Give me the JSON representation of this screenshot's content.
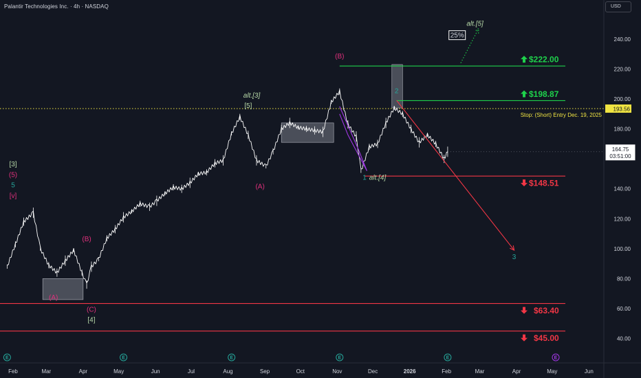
{
  "header": {
    "symbol_title": "Palantir Technologies Inc. · 4h · NASDAQ",
    "currency": "USD"
  },
  "colors": {
    "background": "#131722",
    "text": "#d1d4dc",
    "green_level": "#1ed14b",
    "red_level": "#f23645",
    "magenta": "#e0307c",
    "teal": "#26a69a",
    "light_green": "#b7d9a8",
    "price_line": "#f0e442",
    "violet": "#a238e6",
    "candle": "#ffffff"
  },
  "chart_data": {
    "type": "line",
    "title": "Palantir Technologies Inc. · 4h · NASDAQ",
    "xlabel": "",
    "ylabel": "",
    "ylim": [
      32,
      256
    ],
    "grid": false,
    "x_tick_labels": [
      "Feb",
      "Mar",
      "Apr",
      "May",
      "Jun",
      "Jul",
      "Aug",
      "Sep",
      "Oct",
      "Nov",
      "Dec",
      "2026",
      "Feb",
      "Mar",
      "Apr",
      "May",
      "Jun"
    ],
    "y_tick_labels": [
      "240.00",
      "220.00",
      "200.00",
      "180.00",
      "160.00",
      "140.00",
      "120.00",
      "100.00",
      "80.00",
      "60.00",
      "40.00"
    ],
    "y_tick_values": [
      240,
      220,
      200,
      180,
      160,
      140,
      120,
      100,
      80,
      60,
      40
    ],
    "series": [
      {
        "x": [
          "2025-01-27",
          "2025-02-03",
          "2025-02-10",
          "2025-02-18",
          "2025-02-24",
          "2025-03-03",
          "2025-03-10",
          "2025-03-17",
          "2025-03-24",
          "2025-03-31",
          "2025-04-04",
          "2025-04-08",
          "2025-04-14",
          "2025-04-21",
          "2025-04-28",
          "2025-05-05",
          "2025-05-12",
          "2025-05-19",
          "2025-05-27",
          "2025-06-02",
          "2025-06-09",
          "2025-06-16",
          "2025-06-23",
          "2025-06-30",
          "2025-07-07",
          "2025-07-14",
          "2025-07-21",
          "2025-07-28",
          "2025-08-04",
          "2025-08-11",
          "2025-08-18",
          "2025-08-25",
          "2025-09-02",
          "2025-09-08",
          "2025-09-15",
          "2025-09-22",
          "2025-09-29",
          "2025-10-06",
          "2025-10-13",
          "2025-10-20",
          "2025-10-27",
          "2025-11-03",
          "2025-11-10",
          "2025-11-17",
          "2025-11-21",
          "2025-11-28",
          "2025-12-05",
          "2025-12-12",
          "2025-12-19",
          "2025-12-26",
          "2026-01-02",
          "2026-01-09",
          "2026-01-16",
          "2026-01-23",
          "2026-01-30",
          "2026-02-02"
        ],
        "y": [
          88,
          103,
          118,
          124,
          100,
          89,
          84,
          92,
          99,
          84,
          76,
          88,
          93,
          107,
          113,
          121,
          125,
          130,
          128,
          132,
          137,
          141,
          140,
          144,
          150,
          151,
          157,
          159,
          177,
          188,
          176,
          159,
          155,
          165,
          180,
          184,
          181,
          180,
          179,
          178,
          198,
          205,
          183,
          175,
          152,
          168,
          170,
          184,
          194,
          190,
          180,
          171,
          176,
          170,
          160,
          164.75
        ]
      }
    ],
    "last_price": "164.75",
    "countdown": "03:51:00",
    "last_price_value": 164.75,
    "stop_line_label": "193.56",
    "stop_line_value": 193.56,
    "stop_note": "Stop: (Short) Entry Dec. 19, 2025",
    "levels": [
      {
        "label": "$222.00",
        "value": 222.0,
        "type": "target",
        "arrow": "up"
      },
      {
        "label": "$198.87",
        "value": 198.87,
        "type": "target",
        "arrow": "up"
      },
      {
        "label": "$148.51",
        "value": 148.51,
        "type": "support",
        "arrow": "down"
      },
      {
        "label": "$63.40",
        "value": 63.4,
        "type": "support",
        "arrow": "down"
      },
      {
        "label": "$45.00",
        "value": 45.0,
        "type": "support",
        "arrow": "down"
      }
    ],
    "boxes": [
      {
        "x0": "2025-02-26",
        "x1": "2025-04-01",
        "y0": 66,
        "y1": 80
      },
      {
        "x0": "2025-09-15",
        "x1": "2025-10-29",
        "y0": 171,
        "y1": 184
      },
      {
        "x0": "2025-12-17",
        "x1": "2025-12-26",
        "y0": 194,
        "y1": 223
      }
    ],
    "annotations": [
      {
        "text": "(B)",
        "x": "2025-11-03",
        "y": 227,
        "color": "magenta"
      },
      {
        "text": "alt.[5]",
        "x": "2026-02-25",
        "y": 249,
        "color": "light_green"
      },
      {
        "text": "25%",
        "x": "2026-02-10",
        "y": 241,
        "color": "text",
        "boxed": true
      },
      {
        "text": "alt.[3]",
        "x": "2025-08-21",
        "y": 201,
        "color": "light_green"
      },
      {
        "text": "[5]",
        "x": "2025-08-18",
        "y": 194,
        "color": "light_green",
        "boxed": true
      },
      {
        "text": "[3]",
        "x": "2025-02-01",
        "y": 155,
        "color": "light_green",
        "boxed": true
      },
      {
        "text": "(5)",
        "x": "2025-02-01",
        "y": 148,
        "color": "magenta"
      },
      {
        "text": "5",
        "x": "2025-02-01",
        "y": 141,
        "color": "teal"
      },
      {
        "text": "[v]",
        "x": "2025-02-01",
        "y": 134,
        "color": "magenta"
      },
      {
        "text": "(B)",
        "x": "2025-04-04",
        "y": 105,
        "color": "magenta"
      },
      {
        "text": "(A)",
        "x": "2025-03-07",
        "y": 66,
        "color": "magenta"
      },
      {
        "text": "(C)",
        "x": "2025-04-08",
        "y": 58,
        "color": "magenta"
      },
      {
        "text": "[4]",
        "x": "2025-04-08",
        "y": 51,
        "color": "light_green",
        "boxed": true
      },
      {
        "text": "(A)",
        "x": "2025-08-28",
        "y": 140,
        "color": "magenta"
      },
      {
        "text": "1",
        "x": "2025-11-24",
        "y": 146,
        "color": "teal"
      },
      {
        "text": "alt.[4]",
        "x": "2025-12-05",
        "y": 146,
        "color": "light_green"
      },
      {
        "text": "2",
        "x": "2025-12-21",
        "y": 204,
        "color": "teal"
      },
      {
        "text": "3",
        "x": "2026-03-30",
        "y": 93,
        "color": "teal"
      }
    ],
    "projections": [
      {
        "x0": "2025-12-21",
        "y0": 199,
        "x1": "2026-03-30",
        "y1": 99,
        "color": "red_level"
      },
      {
        "x0": "2026-02-13",
        "y0": 224,
        "x1": "2026-02-28",
        "y1": 247,
        "color": "green_level",
        "dotted": true
      }
    ],
    "wedge": [
      {
        "x": "2025-11-03",
        "y": 195
      },
      {
        "x": "2025-11-19",
        "y": 166
      },
      {
        "x": "2025-11-26",
        "y": 152
      },
      {
        "x": "2025-11-10",
        "y": 176
      },
      {
        "x": "2025-11-03",
        "y": 190
      }
    ],
    "markers": [
      {
        "x": "2025-01-27",
        "icon": "earnings"
      },
      {
        "x": "2025-05-05",
        "icon": "earnings"
      },
      {
        "x": "2025-08-04",
        "icon": "earnings"
      },
      {
        "x": "2025-11-03",
        "icon": "earnings"
      },
      {
        "x": "2026-02-02",
        "icon": "earnings"
      },
      {
        "x": "2026-05-04",
        "icon": "earnings-upcoming"
      }
    ]
  }
}
